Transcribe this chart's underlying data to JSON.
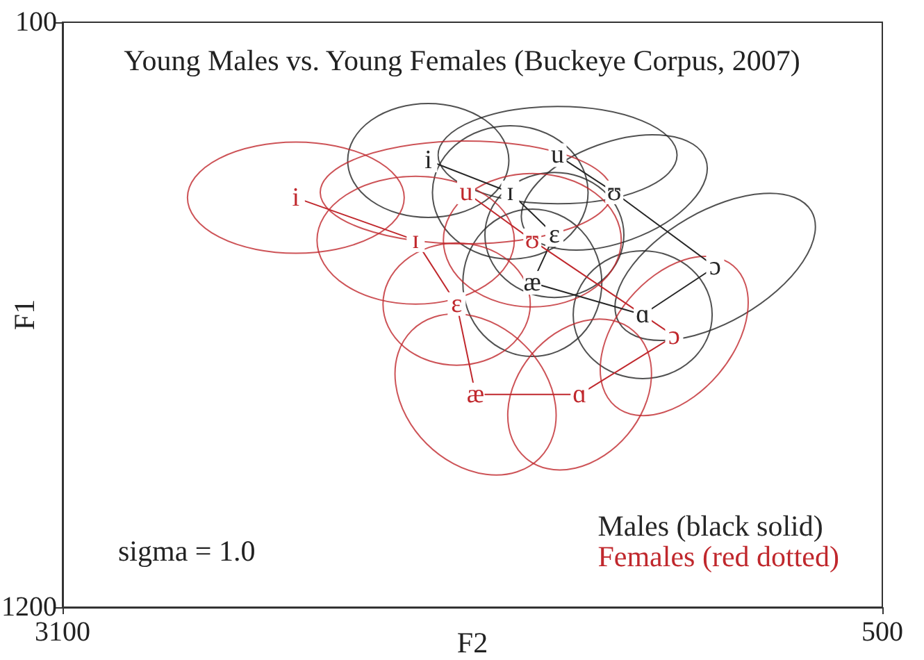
{
  "chart_data": {
    "type": "line",
    "title": "Young Males vs. Young Females (Buckeye Corpus, 2007)",
    "xlabel": "F2",
    "ylabel": "F1",
    "xlim": [
      3100,
      500
    ],
    "ylim": [
      1200,
      100
    ],
    "xticks": [
      3100,
      500
    ],
    "yticks": [
      100,
      1200
    ],
    "legend": "bottom right",
    "marker": "square",
    "annotations": [
      "sigma = 1.0"
    ],
    "series": [
      {
        "name": "Males (black solid)",
        "color": "#262626",
        "x": [
          1940,
          1680,
          1540,
          1610,
          1260,
          1030,
          1350,
          1530
        ],
        "values": [
          360,
          420,
          500,
          590,
          650,
          560,
          420,
          350
        ],
        "value_labels": [
          "i",
          "ɪ",
          "ɛ",
          "æ",
          "ɑ",
          "ɔ",
          "ʊ",
          "u"
        ]
      },
      {
        "name": "Females (red dotted)",
        "color": "#c0282d",
        "x": [
          2360,
          1980,
          1850,
          1790,
          1460,
          1160,
          1610,
          1820
        ],
        "values": [
          430,
          510,
          630,
          800,
          800,
          690,
          510,
          420
        ],
        "value_labels": [
          "i",
          "ɪ",
          "ɛ",
          "æ",
          "ɑ",
          "ɔ",
          "ʊ",
          "u"
        ]
      }
    ]
  }
}
